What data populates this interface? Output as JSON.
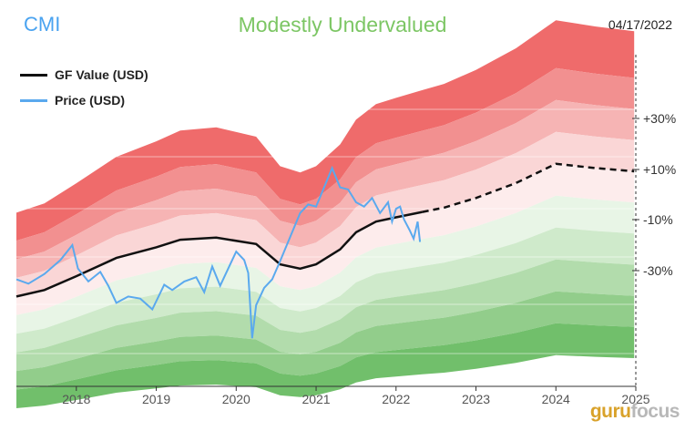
{
  "header": {
    "ticker": "CMI",
    "valuation_label": "Modestly Undervalued",
    "date": "04/17/2022"
  },
  "legend": [
    {
      "label": "GF Value (USD)",
      "color": "#111111"
    },
    {
      "label": "Price (USD)",
      "color": "#5aa9ee"
    }
  ],
  "watermark": {
    "part1": "guru",
    "part2": "focus"
  },
  "chart_data": {
    "type": "area",
    "x_ticks": [
      2018,
      2019,
      2020,
      2021,
      2022,
      2023,
      2024,
      2025
    ],
    "xlim": [
      2017.25,
      2025.0
    ],
    "ylim": [
      90,
      400
    ],
    "band_labels": [
      "+30%",
      "+10%",
      "-10%",
      "-30%"
    ],
    "band_multipliers": [
      1.45,
      1.3,
      1.2,
      1.1,
      1.0,
      0.9,
      0.8,
      0.7,
      0.6,
      0.5
    ],
    "band_colors": [
      "#ef6b6b",
      "#f29090",
      "#f6b4b4",
      "#fad6d6",
      "#fdecec",
      "#e8f5e6",
      "#cfeacb",
      "#b2dcac",
      "#92cd8b",
      "#71bf6b"
    ],
    "gf_value": {
      "name": "GF Value (USD)",
      "points": [
        [
          2017.25,
          174
        ],
        [
          2017.6,
          180
        ],
        [
          2018.0,
          193
        ],
        [
          2018.5,
          210
        ],
        [
          2019.0,
          220
        ],
        [
          2019.3,
          227
        ],
        [
          2019.75,
          229
        ],
        [
          2020.25,
          223
        ],
        [
          2020.55,
          204
        ],
        [
          2020.8,
          200
        ],
        [
          2021.0,
          204
        ],
        [
          2021.3,
          218
        ],
        [
          2021.5,
          234
        ],
        [
          2021.75,
          244
        ],
        [
          2022.0,
          248
        ],
        [
          2022.33,
          253
        ]
      ],
      "projected": [
        [
          2022.33,
          253
        ],
        [
          2022.6,
          257
        ],
        [
          2023.0,
          266
        ],
        [
          2023.5,
          280
        ],
        [
          2024.0,
          298
        ],
        [
          2024.5,
          294
        ],
        [
          2024.98,
          291
        ]
      ]
    },
    "price": {
      "name": "Price (USD)",
      "points": [
        [
          2017.25,
          190
        ],
        [
          2017.4,
          186
        ],
        [
          2017.6,
          195
        ],
        [
          2017.8,
          208
        ],
        [
          2017.95,
          222
        ],
        [
          2018.02,
          200
        ],
        [
          2018.15,
          188
        ],
        [
          2018.3,
          197
        ],
        [
          2018.4,
          184
        ],
        [
          2018.5,
          168
        ],
        [
          2018.65,
          174
        ],
        [
          2018.8,
          172
        ],
        [
          2018.95,
          162
        ],
        [
          2019.1,
          185
        ],
        [
          2019.2,
          180
        ],
        [
          2019.35,
          188
        ],
        [
          2019.5,
          192
        ],
        [
          2019.6,
          178
        ],
        [
          2019.7,
          202
        ],
        [
          2019.8,
          184
        ],
        [
          2019.9,
          200
        ],
        [
          2020.0,
          216
        ],
        [
          2020.1,
          208
        ],
        [
          2020.15,
          196
        ],
        [
          2020.2,
          135
        ],
        [
          2020.25,
          166
        ],
        [
          2020.35,
          182
        ],
        [
          2020.45,
          190
        ],
        [
          2020.55,
          207
        ],
        [
          2020.7,
          234
        ],
        [
          2020.8,
          252
        ],
        [
          2020.9,
          260
        ],
        [
          2021.0,
          258
        ],
        [
          2021.1,
          276
        ],
        [
          2021.2,
          294
        ],
        [
          2021.3,
          276
        ],
        [
          2021.4,
          274
        ],
        [
          2021.5,
          262
        ],
        [
          2021.6,
          258
        ],
        [
          2021.7,
          266
        ],
        [
          2021.8,
          252
        ],
        [
          2021.9,
          262
        ],
        [
          2021.95,
          244
        ],
        [
          2022.0,
          256
        ],
        [
          2022.05,
          258
        ],
        [
          2022.1,
          246
        ],
        [
          2022.17,
          236
        ],
        [
          2022.22,
          228
        ],
        [
          2022.27,
          244
        ],
        [
          2022.3,
          225
        ]
      ]
    }
  }
}
